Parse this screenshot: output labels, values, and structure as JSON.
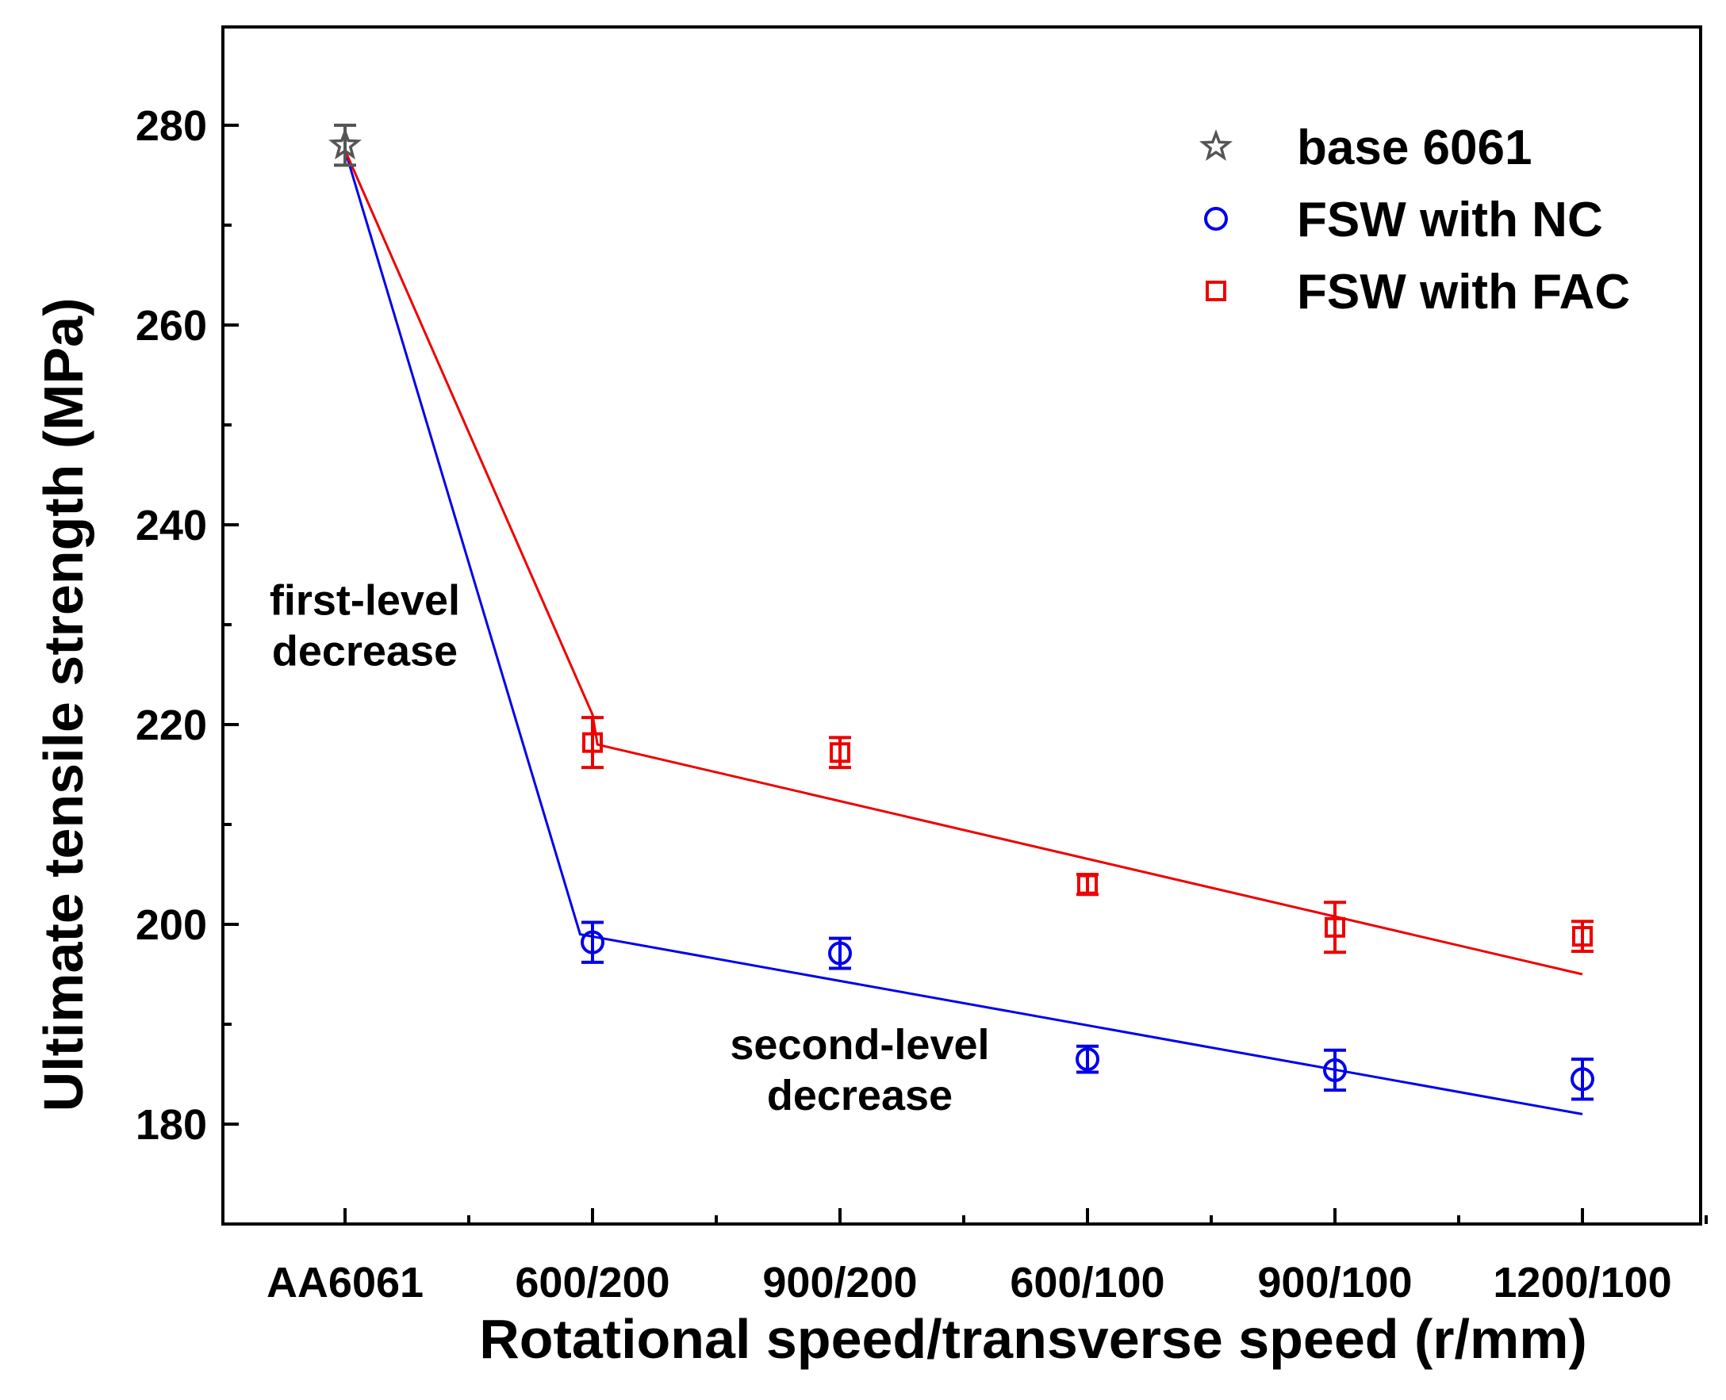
{
  "chart_data": {
    "type": "scatter",
    "title": "",
    "xlabel": "Rotational speed/transverse speed (r/mm)",
    "ylabel": "Ultimate tensile strength (MPa)",
    "categories": [
      "AA6061",
      "600/200",
      "900/200",
      "600/100",
      "900/100",
      "1200/100"
    ],
    "ylim": [
      170,
      290
    ],
    "yticks": [
      180,
      200,
      220,
      240,
      260,
      280
    ],
    "grid": false,
    "legend_position": "top-right",
    "series": [
      {
        "name": "base 6061",
        "marker": "star",
        "color": "#555555",
        "points": [
          {
            "x": "AA6061",
            "y": 278,
            "err": 2
          }
        ]
      },
      {
        "name": "FSW with NC",
        "marker": "circle",
        "color": "#0000ee",
        "points": [
          {
            "x": "600/200",
            "y": 198.2,
            "err": 2
          },
          {
            "x": "900/200",
            "y": 197.1,
            "err": 1.5
          },
          {
            "x": "600/100",
            "y": 186.5,
            "err": 1.3
          },
          {
            "x": "900/100",
            "y": 185.4,
            "err": 2
          },
          {
            "x": "1200/100",
            "y": 184.5,
            "err": 2
          }
        ]
      },
      {
        "name": "FSW with FAC",
        "marker": "square",
        "color": "#ee0000",
        "points": [
          {
            "x": "600/200",
            "y": 218.2,
            "err": 2.5
          },
          {
            "x": "900/200",
            "y": 217.2,
            "err": 1.5
          },
          {
            "x": "600/100",
            "y": 204,
            "err": 1
          },
          {
            "x": "900/100",
            "y": 199.7,
            "err": 2.5
          },
          {
            "x": "1200/100",
            "y": 198.8,
            "err": 1.5
          }
        ]
      }
    ],
    "trend_lines": [
      {
        "color": "#0000ee",
        "points": [
          {
            "x": 0,
            "y": 277.5
          },
          {
            "x": 0.95,
            "y": 199
          },
          {
            "x": 5,
            "y": 181
          }
        ]
      },
      {
        "color": "#ee0000",
        "points": [
          {
            "x": 0,
            "y": 277.5
          },
          {
            "x": 1,
            "y": 221
          },
          {
            "x": 1.02,
            "y": 218
          },
          {
            "x": 5,
            "y": 195
          }
        ]
      }
    ],
    "annotations": [
      {
        "lines": [
          "first-level",
          "decrease"
        ],
        "x": 0.08,
        "y": 231
      },
      {
        "lines": [
          "second-level",
          "decrease"
        ],
        "x": 2.08,
        "y": 186.5
      }
    ]
  }
}
